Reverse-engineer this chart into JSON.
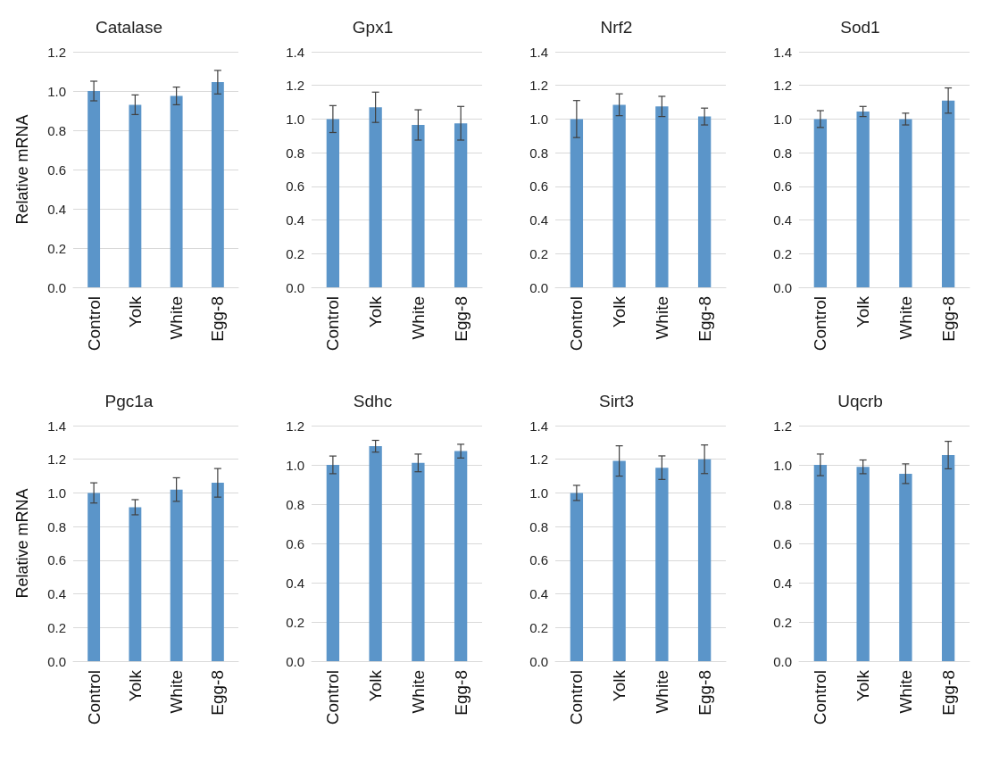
{
  "chart_data": [
    {
      "type": "bar",
      "title": "Catalase",
      "ylabel": "Relative mRNA",
      "categories": [
        "Control",
        "Yolk",
        "White",
        "Egg-8"
      ],
      "values": [
        1.0,
        0.93,
        0.975,
        1.045
      ],
      "errors": [
        0.05,
        0.05,
        0.045,
        0.06
      ],
      "color": "#5b95c9",
      "ylim": [
        0,
        1.2
      ],
      "yticks": [
        {
          "value": 0,
          "label": "0.0"
        },
        {
          "value": 0.2,
          "label": "0.2"
        },
        {
          "value": 0.4,
          "label": "0.4"
        },
        {
          "value": 0.6,
          "label": "0.6"
        },
        {
          "value": 0.8,
          "label": "0.8"
        },
        {
          "value": 1.0,
          "label": "1.0"
        },
        {
          "value": 1.2,
          "label": "1.2"
        }
      ],
      "grid": "y"
    },
    {
      "type": "bar",
      "title": "Gpx1",
      "categories": [
        "Control",
        "Yolk",
        "White",
        "Egg-8"
      ],
      "values": [
        1.0,
        1.07,
        0.965,
        0.975
      ],
      "errors": [
        0.08,
        0.09,
        0.09,
        0.1
      ],
      "color": "#5b95c9",
      "ylim": [
        0,
        1.4
      ],
      "yticks": [
        {
          "value": 0,
          "label": "0.0"
        },
        {
          "value": 0.2,
          "label": "0.2"
        },
        {
          "value": 0.4,
          "label": "0.4"
        },
        {
          "value": 0.6,
          "label": "0.6"
        },
        {
          "value": 0.8,
          "label": "0.8"
        },
        {
          "value": 1.0,
          "label": "1.0"
        },
        {
          "value": 1.2,
          "label": "1.2"
        },
        {
          "value": 1.4,
          "label": "1.4"
        }
      ],
      "grid": "y"
    },
    {
      "type": "bar",
      "title": "Nrf2",
      "categories": [
        "Control",
        "Yolk",
        "White",
        "Egg-8"
      ],
      "values": [
        1.0,
        1.085,
        1.075,
        1.015
      ],
      "errors": [
        0.11,
        0.065,
        0.06,
        0.05
      ],
      "color": "#5b95c9",
      "ylim": [
        0,
        1.4
      ],
      "yticks": [
        {
          "value": 0,
          "label": "0.0"
        },
        {
          "value": 0.2,
          "label": "0.2"
        },
        {
          "value": 0.4,
          "label": "0.4"
        },
        {
          "value": 0.6,
          "label": "0.6"
        },
        {
          "value": 0.8,
          "label": "0.8"
        },
        {
          "value": 1.0,
          "label": "1.0"
        },
        {
          "value": 1.2,
          "label": "1.2"
        },
        {
          "value": 1.4,
          "label": "1.4"
        }
      ],
      "grid": "y"
    },
    {
      "type": "bar",
      "title": "Sod1",
      "categories": [
        "Control",
        "Yolk",
        "White",
        "Egg-8"
      ],
      "values": [
        1.0,
        1.045,
        1.0,
        1.11
      ],
      "errors": [
        0.05,
        0.03,
        0.035,
        0.075
      ],
      "color": "#5b95c9",
      "ylim": [
        0,
        1.4
      ],
      "yticks": [
        {
          "value": 0,
          "label": "0.0"
        },
        {
          "value": 0.2,
          "label": "0.2"
        },
        {
          "value": 0.4,
          "label": "0.4"
        },
        {
          "value": 0.6,
          "label": "0.6"
        },
        {
          "value": 0.8,
          "label": "0.8"
        },
        {
          "value": 1.0,
          "label": "1.0"
        },
        {
          "value": 1.2,
          "label": "1.2"
        },
        {
          "value": 1.4,
          "label": "1.4"
        }
      ],
      "grid": "y"
    },
    {
      "type": "bar",
      "title": "Pgc1a",
      "ylabel": "Relative mRNA",
      "categories": [
        "Control",
        "Yolk",
        "White",
        "Egg-8"
      ],
      "values": [
        1.0,
        0.915,
        1.02,
        1.06
      ],
      "errors": [
        0.06,
        0.045,
        0.07,
        0.085
      ],
      "color": "#5b95c9",
      "ylim": [
        0,
        1.4
      ],
      "yticks": [
        {
          "value": 0,
          "label": "0.0"
        },
        {
          "value": 0.2,
          "label": "0.2"
        },
        {
          "value": 0.4,
          "label": "0.4"
        },
        {
          "value": 0.6,
          "label": "0.6"
        },
        {
          "value": 0.8,
          "label": "0.8"
        },
        {
          "value": 1.0,
          "label": "1.0"
        },
        {
          "value": 1.2,
          "label": "1.2"
        },
        {
          "value": 1.4,
          "label": "1.4"
        }
      ],
      "grid": "y"
    },
    {
      "type": "bar",
      "title": "Sdhc",
      "categories": [
        "Control",
        "Yolk",
        "White",
        "Egg-8"
      ],
      "values": [
        1.0,
        1.095,
        1.01,
        1.07
      ],
      "errors": [
        0.045,
        0.03,
        0.045,
        0.035
      ],
      "color": "#5b95c9",
      "ylim": [
        0,
        1.2
      ],
      "yticks": [
        {
          "value": 0,
          "label": "0.0"
        },
        {
          "value": 0.2,
          "label": "0.2"
        },
        {
          "value": 0.4,
          "label": "0.4"
        },
        {
          "value": 0.6,
          "label": "0.6"
        },
        {
          "value": 0.8,
          "label": "0.8"
        },
        {
          "value": 1.0,
          "label": "1.0"
        },
        {
          "value": 1.2,
          "label": "1.2"
        }
      ],
      "grid": "y"
    },
    {
      "type": "bar",
      "title": "Sirt3",
      "categories": [
        "Control",
        "Yolk",
        "White",
        "Egg-8"
      ],
      "values": [
        1.0,
        1.19,
        1.15,
        1.2
      ],
      "errors": [
        0.045,
        0.09,
        0.07,
        0.085
      ],
      "color": "#5b95c9",
      "ylim": [
        0,
        1.4
      ],
      "yticks": [
        {
          "value": 0,
          "label": "0.0"
        },
        {
          "value": 0.2,
          "label": "0.2"
        },
        {
          "value": 0.4,
          "label": "0.4"
        },
        {
          "value": 0.6,
          "label": "0.6"
        },
        {
          "value": 0.8,
          "label": "0.8"
        },
        {
          "value": 1.0,
          "label": "1.0"
        },
        {
          "value": 1.2,
          "label": "1.2"
        },
        {
          "value": 1.4,
          "label": "1.4"
        }
      ],
      "grid": "y"
    },
    {
      "type": "bar",
      "title": "Uqcrb",
      "categories": [
        "Control",
        "Yolk",
        "White",
        "Egg-8"
      ],
      "values": [
        1.0,
        0.99,
        0.955,
        1.05
      ],
      "errors": [
        0.055,
        0.035,
        0.05,
        0.07
      ],
      "color": "#5b95c9",
      "ylim": [
        0,
        1.2
      ],
      "yticks": [
        {
          "value": 0,
          "label": "0.0"
        },
        {
          "value": 0.2,
          "label": "0.2"
        },
        {
          "value": 0.4,
          "label": "0.4"
        },
        {
          "value": 0.6,
          "label": "0.6"
        },
        {
          "value": 0.8,
          "label": "0.8"
        },
        {
          "value": 1.0,
          "label": "1.0"
        },
        {
          "value": 1.2,
          "label": "1.2"
        }
      ],
      "grid": "y"
    }
  ]
}
